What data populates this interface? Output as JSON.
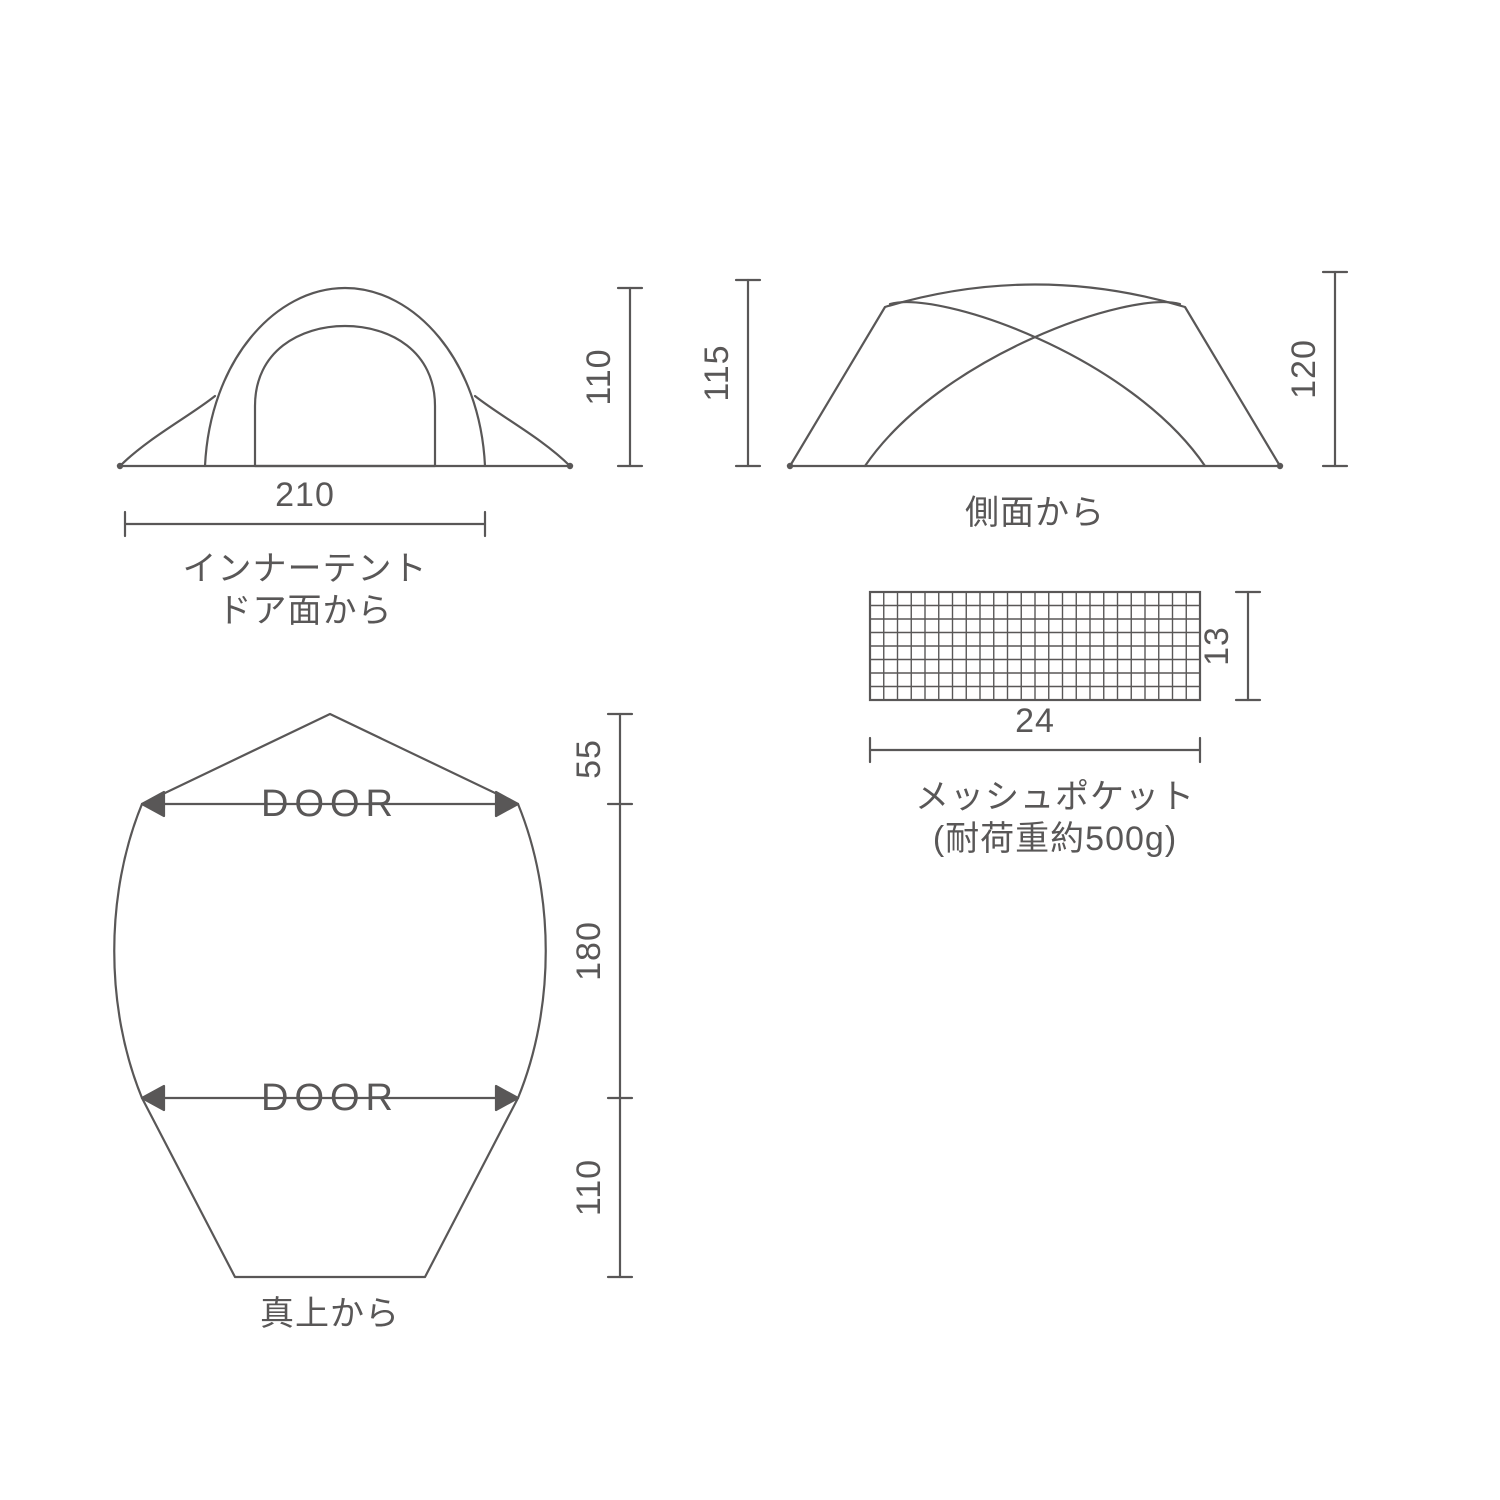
{
  "colors": {
    "stroke": "#595757",
    "text": "#595757",
    "background": "#ffffff"
  },
  "stroke_width": 2.2,
  "font_size_dim": 34,
  "font_size_caption": 34,
  "font_size_door": 38,
  "front_view": {
    "width_label": "210",
    "height_label": "110",
    "caption_line1": "インナーテント",
    "caption_line2": "ドア面から"
  },
  "side_view": {
    "inner_height_label": "115",
    "outer_height_label": "120",
    "caption": "側面から"
  },
  "mesh_pocket": {
    "width_label": "24",
    "height_label": "13",
    "caption_line1": "メッシュポケット",
    "caption_line2": "(耐荷重約500g)",
    "grid_cols": 24,
    "grid_rows": 8
  },
  "top_view": {
    "dim_top": "55",
    "dim_mid": "180",
    "dim_bot": "110",
    "door_label": "DOOR",
    "caption": "真上から"
  }
}
